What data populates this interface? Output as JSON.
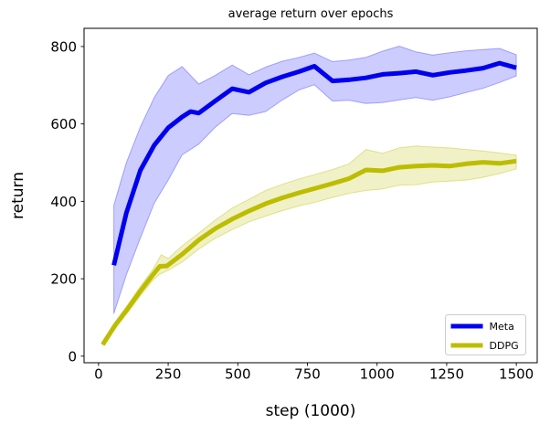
{
  "chart_data": {
    "type": "line",
    "title": "average return over epochs",
    "xlabel": "step (1000)",
    "ylabel": "return",
    "xlim": [
      -52,
      1575
    ],
    "ylim": [
      -17,
      847
    ],
    "xticks": [
      0,
      250,
      500,
      750,
      1000,
      1250,
      1500
    ],
    "yticks": [
      0,
      200,
      400,
      600,
      800
    ],
    "grid": false,
    "legend": {
      "position": "lower right",
      "entries": [
        {
          "label": "Meta",
          "color": "#0000ee"
        },
        {
          "label": "DDPG",
          "color": "#bdbd00"
        }
      ]
    },
    "series": [
      {
        "name": "Meta",
        "color": "#0000ee",
        "band_fill": "rgba(0,0,255,0.2)",
        "band_edge": "rgba(0,0,255,0.3)",
        "line": [
          [
            55,
            235
          ],
          [
            100,
            370
          ],
          [
            150,
            480
          ],
          [
            200,
            545
          ],
          [
            250,
            590
          ],
          [
            300,
            618
          ],
          [
            330,
            632
          ],
          [
            360,
            628
          ],
          [
            420,
            660
          ],
          [
            480,
            691
          ],
          [
            540,
            682
          ],
          [
            600,
            706
          ],
          [
            660,
            722
          ],
          [
            720,
            735
          ],
          [
            775,
            749
          ],
          [
            840,
            711
          ],
          [
            900,
            714
          ],
          [
            960,
            719
          ],
          [
            1020,
            728
          ],
          [
            1080,
            731
          ],
          [
            1140,
            735
          ],
          [
            1200,
            726
          ],
          [
            1260,
            733
          ],
          [
            1320,
            738
          ],
          [
            1380,
            744
          ],
          [
            1440,
            757
          ],
          [
            1500,
            745
          ]
        ],
        "band_upper": [
          [
            55,
            390
          ],
          [
            100,
            500
          ],
          [
            150,
            592
          ],
          [
            200,
            668
          ],
          [
            250,
            725
          ],
          [
            300,
            748
          ],
          [
            360,
            703
          ],
          [
            420,
            726
          ],
          [
            480,
            752
          ],
          [
            540,
            727
          ],
          [
            600,
            747
          ],
          [
            660,
            762
          ],
          [
            720,
            772
          ],
          [
            775,
            783
          ],
          [
            840,
            761
          ],
          [
            900,
            765
          ],
          [
            960,
            772
          ],
          [
            1020,
            788
          ],
          [
            1080,
            801
          ],
          [
            1140,
            786
          ],
          [
            1200,
            778
          ],
          [
            1260,
            784
          ],
          [
            1320,
            789
          ],
          [
            1380,
            792
          ],
          [
            1440,
            795
          ],
          [
            1500,
            779
          ]
        ],
        "band_lower": [
          [
            55,
            110
          ],
          [
            100,
            210
          ],
          [
            150,
            305
          ],
          [
            200,
            395
          ],
          [
            250,
            455
          ],
          [
            300,
            520
          ],
          [
            360,
            548
          ],
          [
            420,
            592
          ],
          [
            480,
            627
          ],
          [
            540,
            622
          ],
          [
            600,
            632
          ],
          [
            660,
            662
          ],
          [
            720,
            688
          ],
          [
            775,
            701
          ],
          [
            840,
            659
          ],
          [
            900,
            661
          ],
          [
            960,
            653
          ],
          [
            1020,
            655
          ],
          [
            1080,
            662
          ],
          [
            1140,
            668
          ],
          [
            1200,
            661
          ],
          [
            1260,
            670
          ],
          [
            1320,
            681
          ],
          [
            1380,
            692
          ],
          [
            1440,
            707
          ],
          [
            1500,
            724
          ]
        ]
      },
      {
        "name": "DDPG",
        "color": "#bdbd00",
        "band_fill": "rgba(189,189,0,0.22)",
        "band_edge": "rgba(189,189,0,0.4)",
        "line": [
          [
            15,
            30
          ],
          [
            60,
            80
          ],
          [
            105,
            123
          ],
          [
            150,
            168
          ],
          [
            195,
            210
          ],
          [
            220,
            232
          ],
          [
            245,
            233
          ],
          [
            300,
            263
          ],
          [
            360,
            300
          ],
          [
            420,
            330
          ],
          [
            480,
            354
          ],
          [
            540,
            375
          ],
          [
            600,
            394
          ],
          [
            660,
            409
          ],
          [
            720,
            422
          ],
          [
            780,
            434
          ],
          [
            840,
            446
          ],
          [
            900,
            459
          ],
          [
            960,
            481
          ],
          [
            1020,
            479
          ],
          [
            1080,
            488
          ],
          [
            1140,
            491
          ],
          [
            1200,
            493
          ],
          [
            1260,
            491
          ],
          [
            1320,
            497
          ],
          [
            1380,
            501
          ],
          [
            1440,
            498
          ],
          [
            1500,
            504
          ]
        ],
        "band_upper": [
          [
            15,
            32
          ],
          [
            60,
            88
          ],
          [
            105,
            133
          ],
          [
            150,
            180
          ],
          [
            195,
            224
          ],
          [
            225,
            262
          ],
          [
            250,
            252
          ],
          [
            300,
            285
          ],
          [
            360,
            318
          ],
          [
            420,
            352
          ],
          [
            480,
            383
          ],
          [
            540,
            405
          ],
          [
            600,
            428
          ],
          [
            660,
            444
          ],
          [
            720,
            458
          ],
          [
            780,
            470
          ],
          [
            840,
            482
          ],
          [
            900,
            497
          ],
          [
            960,
            534
          ],
          [
            1020,
            524
          ],
          [
            1080,
            538
          ],
          [
            1140,
            543
          ],
          [
            1200,
            540
          ],
          [
            1260,
            538
          ],
          [
            1320,
            534
          ],
          [
            1380,
            530
          ],
          [
            1440,
            525
          ],
          [
            1500,
            519
          ]
        ],
        "band_lower": [
          [
            15,
            28
          ],
          [
            60,
            72
          ],
          [
            105,
            113
          ],
          [
            150,
            156
          ],
          [
            195,
            196
          ],
          [
            220,
            212
          ],
          [
            245,
            220
          ],
          [
            300,
            243
          ],
          [
            360,
            277
          ],
          [
            420,
            305
          ],
          [
            480,
            327
          ],
          [
            540,
            347
          ],
          [
            600,
            362
          ],
          [
            660,
            376
          ],
          [
            720,
            388
          ],
          [
            780,
            398
          ],
          [
            840,
            410
          ],
          [
            900,
            421
          ],
          [
            960,
            428
          ],
          [
            1020,
            432
          ],
          [
            1080,
            442
          ],
          [
            1140,
            443
          ],
          [
            1200,
            450
          ],
          [
            1260,
            452
          ],
          [
            1320,
            455
          ],
          [
            1380,
            462
          ],
          [
            1440,
            472
          ],
          [
            1500,
            484
          ]
        ]
      }
    ]
  }
}
